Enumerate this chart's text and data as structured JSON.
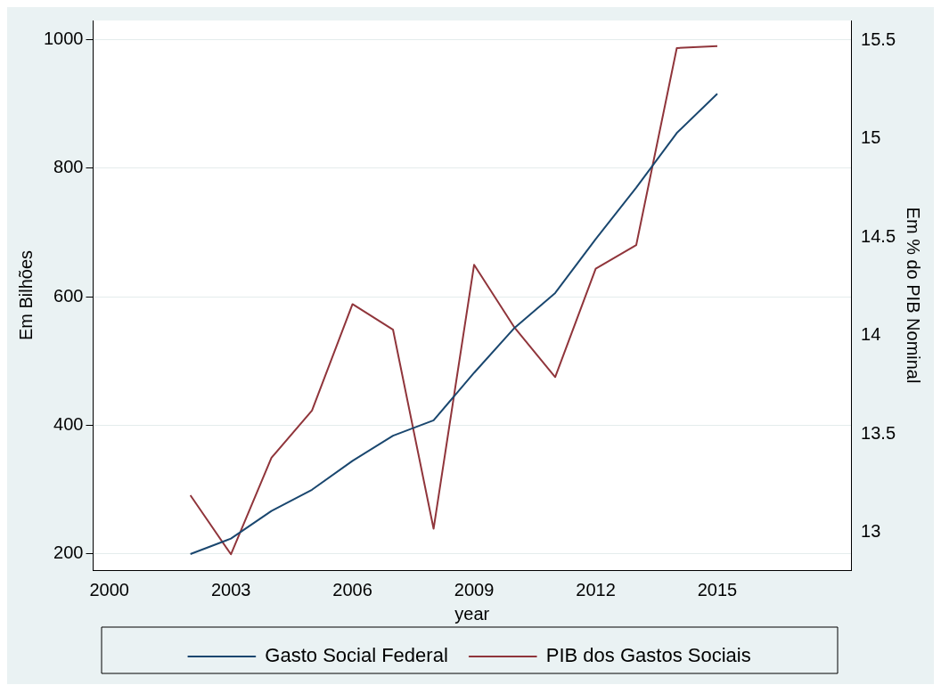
{
  "chart_data": {
    "type": "line",
    "xlabel": "year",
    "ylabel": "Em Bilhões",
    "y2label": "Em % do PIB Nominal",
    "x": [
      2002,
      2003,
      2004,
      2005,
      2006,
      2007,
      2008,
      2009,
      2010,
      2011,
      2012,
      2013,
      2014,
      2015
    ],
    "series": [
      {
        "name": "Gasto Social Federal",
        "color": "#1a476f",
        "values": [
          200,
          224,
          267,
          300,
          345,
          384,
          408,
          482,
          552,
          606,
          690,
          770,
          855,
          916
        ]
      },
      {
        "name": "PIB dos Gastos Sociais",
        "color": "#90353b",
        "axis": "y2",
        "values": [
          13.19,
          12.89,
          13.38,
          13.62,
          14.16,
          14.03,
          13.02,
          14.36,
          14.04,
          13.79,
          14.34,
          14.46,
          15.46,
          15.47
        ]
      }
    ],
    "xlim": [
      1999.6,
      2018.3
    ],
    "xticks": [
      2000,
      2003,
      2006,
      2009,
      2012,
      2015
    ],
    "ylim": [
      175,
      1030
    ],
    "yticks": [
      200,
      400,
      600,
      800,
      1000
    ],
    "y2lim": [
      12.81,
      15.6
    ],
    "y2ticks": [
      13,
      13.5,
      14,
      14.5,
      15,
      15.5
    ],
    "grid": "y",
    "legend": "bottom",
    "marker": "none",
    "line_style": "solid"
  }
}
